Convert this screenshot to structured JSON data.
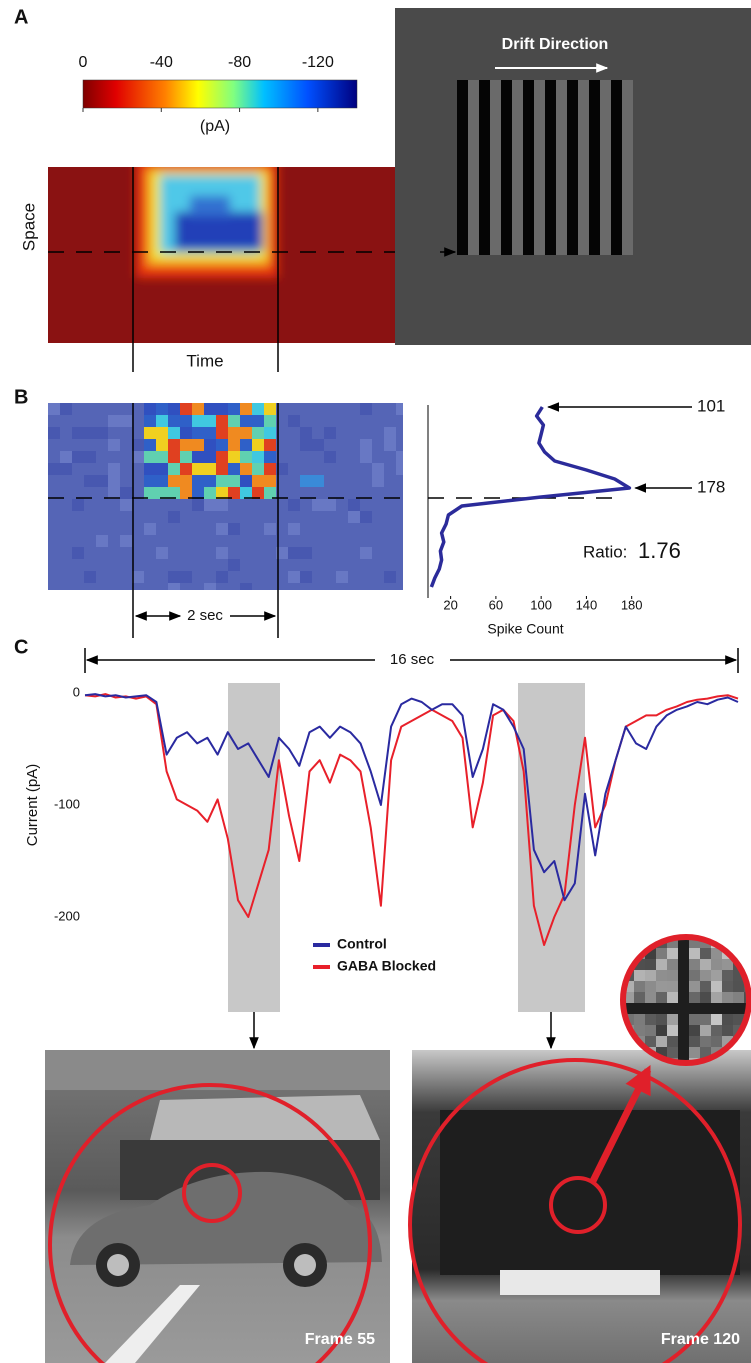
{
  "panel_labels": [
    "A",
    "B",
    "C"
  ],
  "colorbar": {
    "ticks": [
      0,
      -40,
      -80,
      -120
    ],
    "range": [
      0,
      -140
    ],
    "label": "(pA)"
  },
  "heatmap": {
    "y_label": "Space",
    "x_label": "Time"
  },
  "stimulus": {
    "title": "Drift Direction"
  },
  "raster": {
    "scale_bar": "2 sec"
  },
  "chart_data": [
    {
      "type": "line",
      "orientation": "horizontal",
      "xlabel": "Spike Count",
      "categories": [
        null,
        null,
        null,
        null,
        null,
        null,
        null,
        null,
        null,
        null,
        null,
        null,
        null,
        null,
        null,
        null,
        null,
        null,
        null,
        null,
        null
      ],
      "values": [
        101,
        96,
        102,
        100,
        98,
        103,
        112,
        140,
        165,
        178,
        100,
        30,
        18,
        16,
        12,
        14,
        11,
        12,
        10,
        6,
        3
      ],
      "color": "#2b2b9a",
      "xlim": [
        0,
        190
      ],
      "xticks": [
        20,
        60,
        100,
        140,
        180
      ],
      "annotations": [
        101,
        178
      ],
      "ratio_label": "Ratio:",
      "ratio": 1.76
    },
    {
      "type": "line",
      "ylabel": "Current (pA)",
      "span_label": "16 sec",
      "xlim": [
        0,
        16
      ],
      "x": [
        0,
        0.25,
        0.5,
        0.75,
        1,
        1.25,
        1.5,
        1.75,
        2,
        2.25,
        2.5,
        2.75,
        3,
        3.25,
        3.5,
        3.75,
        4,
        4.25,
        4.5,
        4.75,
        5,
        5.25,
        5.5,
        5.75,
        6,
        6.25,
        6.5,
        6.75,
        7,
        7.25,
        7.5,
        7.75,
        8,
        8.25,
        8.5,
        8.75,
        9,
        9.25,
        9.5,
        9.75,
        10,
        10.25,
        10.5,
        10.75,
        11,
        11.25,
        11.5,
        11.75,
        12,
        12.25,
        12.5,
        12.75,
        13,
        13.25,
        13.5,
        13.75,
        14,
        14.25,
        14.5,
        14.75,
        15,
        15.25,
        15.5,
        15.75,
        16
      ],
      "ylim": [
        -240,
        10
      ],
      "yticks": [
        0,
        -100,
        -200
      ],
      "series": [
        {
          "name": "Control",
          "color": "#2a2aa0",
          "values": [
            -2,
            -1,
            -3,
            -2,
            -4,
            -3,
            -2,
            -8,
            -55,
            -40,
            -35,
            -45,
            -40,
            -55,
            -35,
            -50,
            -45,
            -60,
            -75,
            -40,
            -50,
            -65,
            -35,
            -30,
            -40,
            -30,
            -35,
            -45,
            -70,
            -100,
            -30,
            -10,
            -5,
            -8,
            -15,
            -10,
            -10,
            -20,
            -75,
            -50,
            -10,
            -15,
            -30,
            -50,
            -140,
            -160,
            -150,
            -185,
            -170,
            -90,
            -145,
            -90,
            -60,
            -30,
            -45,
            -50,
            -30,
            -20,
            -15,
            -12,
            -8,
            -10,
            -6,
            -4,
            -8
          ]
        },
        {
          "name": "GABA Blocked",
          "color": "#e8202a",
          "values": [
            -2,
            -3,
            -1,
            -4,
            -3,
            -5,
            -3,
            -10,
            -70,
            -95,
            -100,
            -105,
            -115,
            -95,
            -130,
            -185,
            -200,
            -170,
            -140,
            -60,
            -110,
            -150,
            -70,
            -60,
            -80,
            -55,
            -60,
            -70,
            -120,
            -190,
            -60,
            -30,
            -25,
            -20,
            -15,
            -20,
            -25,
            -40,
            -120,
            -80,
            -20,
            -15,
            -25,
            -70,
            -190,
            -225,
            -200,
            -180,
            -100,
            -40,
            -120,
            -100,
            -60,
            -30,
            -25,
            -20,
            -20,
            -15,
            -12,
            -8,
            -6,
            -5,
            -3,
            -2,
            -5
          ]
        }
      ]
    }
  ],
  "frames": [
    "Frame 55",
    "Frame 120"
  ]
}
